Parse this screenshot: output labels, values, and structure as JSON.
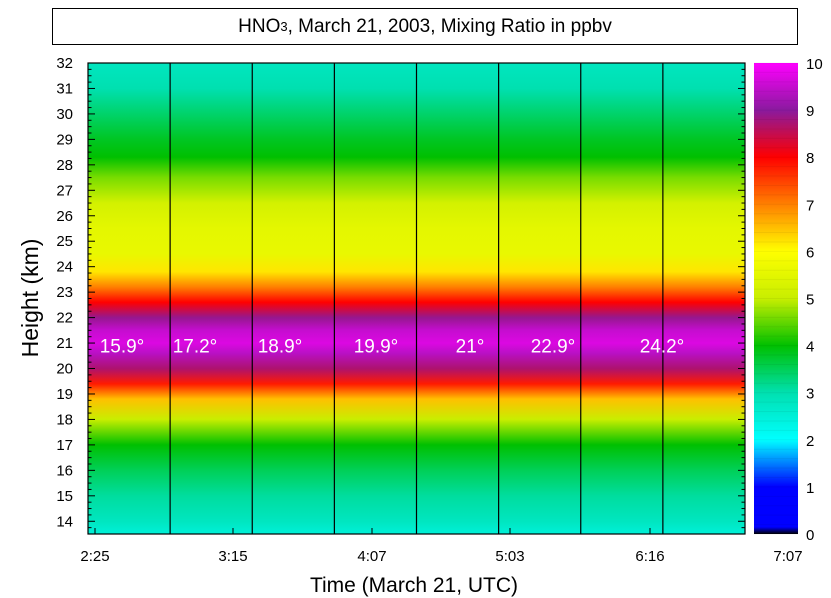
{
  "chart_data": {
    "type": "heatmap",
    "title": {
      "prefix": "HNO",
      "subscript": "3",
      "suffix": ", March 21, 2003, Mixing Ratio in ppbv"
    },
    "xlabel": "Time (March 21, UTC)",
    "ylabel": "Height (km)",
    "x_ticks": [
      "2:25",
      "3:15",
      "4:07",
      "5:03",
      "6:16",
      "7:07"
    ],
    "y_ticks": [
      14,
      15,
      16,
      17,
      18,
      19,
      20,
      21,
      22,
      23,
      24,
      25,
      26,
      27,
      28,
      29,
      30,
      31,
      32
    ],
    "ylim": [
      13.5,
      32
    ],
    "colorbar": {
      "min": 0,
      "max": 10,
      "ticks": [
        0,
        1,
        2,
        3,
        4,
        5,
        6,
        7,
        8,
        9,
        10
      ],
      "position": "right"
    },
    "profile": [
      {
        "height": 13.5,
        "value": 2.5
      },
      {
        "height": 14.0,
        "value": 2.8
      },
      {
        "height": 15.0,
        "value": 3.1
      },
      {
        "height": 16.0,
        "value": 3.5
      },
      {
        "height": 17.0,
        "value": 4.0
      },
      {
        "height": 18.0,
        "value": 5.0
      },
      {
        "height": 18.8,
        "value": 6.5
      },
      {
        "height": 19.4,
        "value": 7.8
      },
      {
        "height": 20.0,
        "value": 8.7
      },
      {
        "height": 20.6,
        "value": 9.4
      },
      {
        "height": 21.0,
        "value": 9.7
      },
      {
        "height": 21.5,
        "value": 9.5
      },
      {
        "height": 22.0,
        "value": 8.9
      },
      {
        "height": 22.6,
        "value": 8.0
      },
      {
        "height": 23.2,
        "value": 7.0
      },
      {
        "height": 23.8,
        "value": 6.2
      },
      {
        "height": 24.5,
        "value": 5.6
      },
      {
        "height": 25.5,
        "value": 5.5
      },
      {
        "height": 26.5,
        "value": 5.2
      },
      {
        "height": 27.5,
        "value": 4.6
      },
      {
        "height": 28.3,
        "value": 4.0
      },
      {
        "height": 29.0,
        "value": 3.8
      },
      {
        "height": 30.0,
        "value": 3.4
      },
      {
        "height": 31.0,
        "value": 3.0
      },
      {
        "height": 32.0,
        "value": 2.8
      }
    ],
    "annotations": [
      {
        "label": "15.9°",
        "height": 20.9
      },
      {
        "label": "17.2°",
        "height": 20.9
      },
      {
        "label": "18.9°",
        "height": 20.9
      },
      {
        "label": "19.9°",
        "height": 20.9
      },
      {
        "label": "21°",
        "height": 20.9
      },
      {
        "label": "22.9°",
        "height": 20.9
      },
      {
        "label": "24.2°",
        "height": 20.9
      }
    ],
    "segments": 8,
    "colors": {
      "magenta": "#ff00ff",
      "purple": "#8a1a9e",
      "red": "#ff0000",
      "orange": "#ff8000",
      "yellow": "#ffff00",
      "yellow_green": "#c8ee00",
      "green": "#00c000",
      "teal": "#00e0b0",
      "cyan": "#00ffff",
      "blue": "#0000ff",
      "black": "#000000"
    }
  }
}
